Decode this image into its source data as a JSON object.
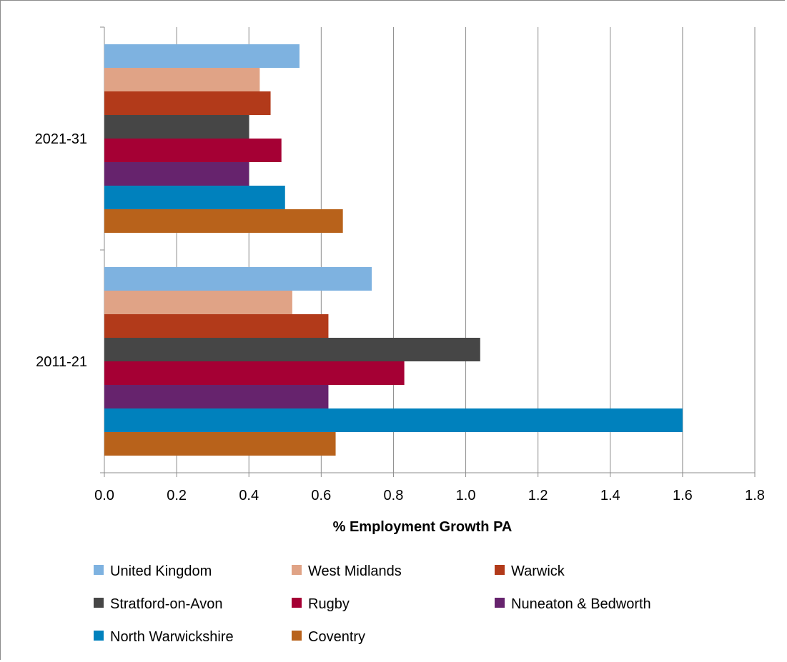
{
  "chart_data": {
    "type": "bar",
    "orientation": "horizontal",
    "xlabel": "% Employment Growth PA",
    "xlim": [
      0,
      1.8
    ],
    "x_ticks": [
      "0.0",
      "0.2",
      "0.4",
      "0.6",
      "0.8",
      "1.0",
      "1.2",
      "1.4",
      "1.6",
      "1.8"
    ],
    "categories": [
      "2021-31",
      "2011-21"
    ],
    "grid": "vertical",
    "legend_position": "bottom",
    "series": [
      {
        "name": "United Kingdom",
        "color": "#7eb2e0",
        "values": [
          0.54,
          0.74
        ]
      },
      {
        "name": "West Midlands",
        "color": "#e0a386",
        "values": [
          0.43,
          0.52
        ]
      },
      {
        "name": "Warwick",
        "color": "#b23a1a",
        "values": [
          0.46,
          0.62
        ]
      },
      {
        "name": "Stratford-on-Avon",
        "color": "#464646",
        "values": [
          0.4,
          1.04
        ]
      },
      {
        "name": "Rugby",
        "color": "#a50034",
        "values": [
          0.49,
          0.83
        ]
      },
      {
        "name": "Nuneaton & Bedworth",
        "color": "#66236d",
        "values": [
          0.4,
          0.62
        ]
      },
      {
        "name": "North Warwickshire",
        "color": "#0081bd",
        "values": [
          0.5,
          1.6
        ]
      },
      {
        "name": "Coventry",
        "color": "#b8621b",
        "values": [
          0.66,
          0.64
        ]
      }
    ]
  }
}
